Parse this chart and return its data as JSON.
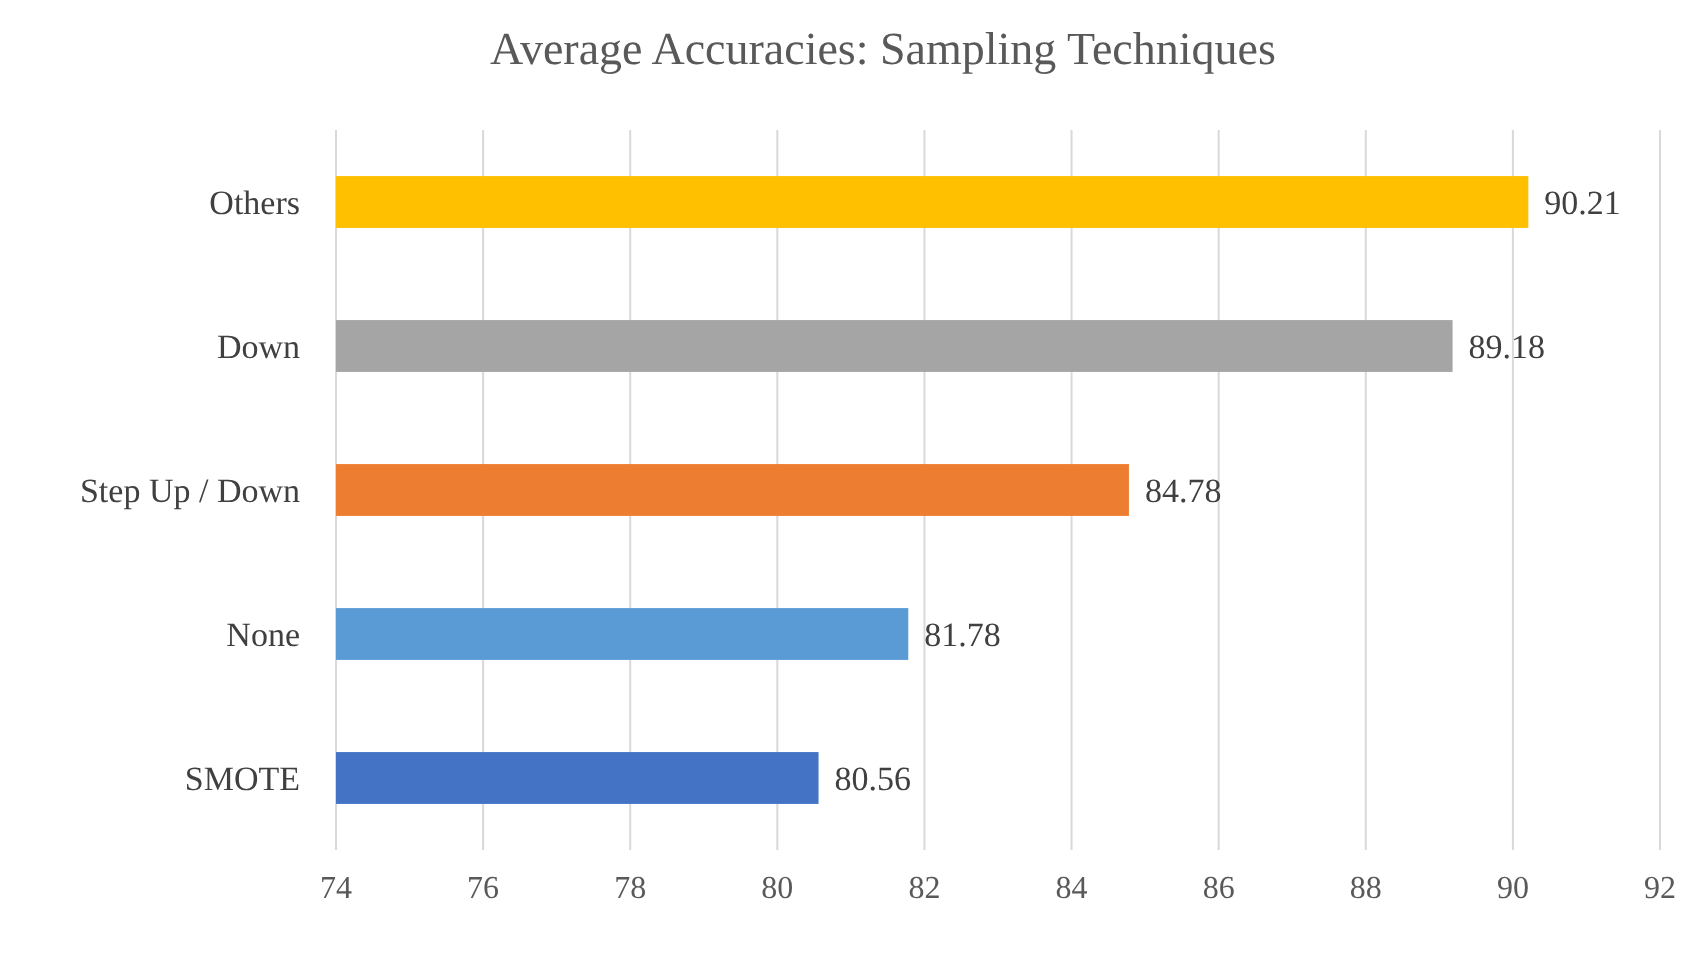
{
  "chart_data": {
    "type": "bar",
    "orientation": "horizontal",
    "title": "Average Accuracies: Sampling Techniques",
    "categories": [
      "Others",
      "Down",
      "Step Up / Down",
      "None",
      "SMOTE"
    ],
    "values": [
      90.21,
      89.18,
      84.78,
      81.78,
      80.56
    ],
    "colors": [
      "#ffc000",
      "#a5a5a5",
      "#ed7d31",
      "#5b9bd5",
      "#4472c4"
    ],
    "xlim": [
      74,
      92
    ],
    "xticks": [
      74,
      76,
      78,
      80,
      82,
      84,
      86,
      88,
      90,
      92
    ],
    "grid": "x",
    "data_labels": true
  }
}
